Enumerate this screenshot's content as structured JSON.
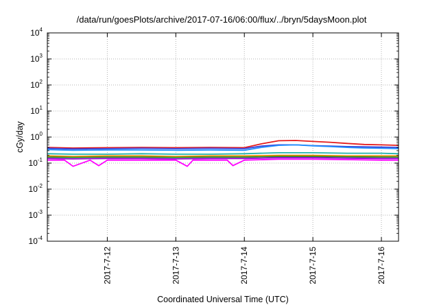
{
  "chart_data": {
    "type": "line",
    "title": "/data/run/goesPlots/archive/2017-07-16/06:00/flux/../bryn/5daysMoon.plot",
    "xlabel": "Coordinated Universal Time (UTC)",
    "ylabel": "cGy/day",
    "yscale": "log",
    "ylim": [
      0.0001,
      10000
    ],
    "xlim": [
      "2017-07-11T03:00",
      "2017-07-16T06:00"
    ],
    "grid": true,
    "legend": "none",
    "y_ticks": [
      {
        "base": "10",
        "exp": "-4",
        "value": 0.0001
      },
      {
        "base": "10",
        "exp": "-3",
        "value": 0.001
      },
      {
        "base": "10",
        "exp": "-2",
        "value": 0.01
      },
      {
        "base": "10",
        "exp": "-1",
        "value": 0.1
      },
      {
        "base": "10",
        "exp": "0",
        "value": 1
      },
      {
        "base": "10",
        "exp": "1",
        "value": 10
      },
      {
        "base": "10",
        "exp": "2",
        "value": 100
      },
      {
        "base": "10",
        "exp": "3",
        "value": 1000
      },
      {
        "base": "10",
        "exp": "4",
        "value": 10000
      }
    ],
    "x_ticks": [
      {
        "label": "2017-7-12",
        "value": "2017-07-12T00:00"
      },
      {
        "label": "2017-7-13",
        "value": "2017-07-13T00:00"
      },
      {
        "label": "2017-7-14",
        "value": "2017-07-14T00:00"
      },
      {
        "label": "2017-7-15",
        "value": "2017-07-15T00:00"
      },
      {
        "label": "2017-7-16",
        "value": "2017-07-16T00:00"
      }
    ],
    "series": [
      {
        "color": "#e41a1c",
        "x": [
          "2017-07-11T03:00",
          "2017-07-11T12:00",
          "2017-07-12T00:00",
          "2017-07-12T12:00",
          "2017-07-13T00:00",
          "2017-07-13T12:00",
          "2017-07-14T00:00",
          "2017-07-14T06:00",
          "2017-07-14T12:00",
          "2017-07-14T18:00",
          "2017-07-15T00:00",
          "2017-07-15T06:00",
          "2017-07-15T12:00",
          "2017-07-15T18:00",
          "2017-07-16T00:00",
          "2017-07-16T06:00"
        ],
        "y": [
          0.4,
          0.38,
          0.39,
          0.4,
          0.39,
          0.4,
          0.39,
          0.55,
          0.72,
          0.74,
          0.68,
          0.63,
          0.57,
          0.52,
          0.5,
          0.48
        ]
      },
      {
        "color": "#3b3fd8",
        "x": [
          "2017-07-11T03:00",
          "2017-07-11T12:00",
          "2017-07-12T00:00",
          "2017-07-12T12:00",
          "2017-07-13T00:00",
          "2017-07-13T12:00",
          "2017-07-14T00:00",
          "2017-07-14T06:00",
          "2017-07-14T12:00",
          "2017-07-14T18:00",
          "2017-07-15T00:00",
          "2017-07-15T06:00",
          "2017-07-15T12:00",
          "2017-07-15T18:00",
          "2017-07-16T00:00",
          "2017-07-16T06:00"
        ],
        "y": [
          0.37,
          0.35,
          0.36,
          0.37,
          0.36,
          0.37,
          0.36,
          0.45,
          0.5,
          0.5,
          0.47,
          0.45,
          0.43,
          0.42,
          0.41,
          0.4
        ]
      },
      {
        "color": "#1e90ff",
        "x": [
          "2017-07-11T03:00",
          "2017-07-11T12:00",
          "2017-07-12T00:00",
          "2017-07-12T12:00",
          "2017-07-13T00:00",
          "2017-07-13T12:00",
          "2017-07-14T00:00",
          "2017-07-14T06:00",
          "2017-07-14T12:00",
          "2017-07-14T18:00",
          "2017-07-15T00:00",
          "2017-07-15T06:00",
          "2017-07-15T12:00",
          "2017-07-15T18:00",
          "2017-07-16T00:00",
          "2017-07-16T06:00"
        ],
        "y": [
          0.33,
          0.31,
          0.32,
          0.32,
          0.31,
          0.32,
          0.31,
          0.4,
          0.48,
          0.5,
          0.46,
          0.43,
          0.4,
          0.38,
          0.37,
          0.36
        ]
      },
      {
        "color": "#20b2aa",
        "x": [
          "2017-07-11T03:00",
          "2017-07-11T12:00",
          "2017-07-12T00:00",
          "2017-07-12T12:00",
          "2017-07-13T00:00",
          "2017-07-13T12:00",
          "2017-07-14T00:00",
          "2017-07-14T12:00",
          "2017-07-15T00:00",
          "2017-07-15T12:00",
          "2017-07-16T00:00",
          "2017-07-16T06:00"
        ],
        "y": [
          0.23,
          0.22,
          0.22,
          0.23,
          0.22,
          0.22,
          0.23,
          0.25,
          0.25,
          0.24,
          0.24,
          0.23
        ]
      },
      {
        "color": "#ff8c00",
        "x": [
          "2017-07-11T03:00",
          "2017-07-11T12:00",
          "2017-07-12T00:00",
          "2017-07-12T12:00",
          "2017-07-13T00:00",
          "2017-07-13T12:00",
          "2017-07-14T00:00",
          "2017-07-14T12:00",
          "2017-07-15T00:00",
          "2017-07-15T12:00",
          "2017-07-16T00:00",
          "2017-07-16T06:00"
        ],
        "y": [
          0.19,
          0.18,
          0.19,
          0.19,
          0.18,
          0.19,
          0.19,
          0.2,
          0.2,
          0.19,
          0.19,
          0.19
        ]
      },
      {
        "color": "#228b22",
        "x": [
          "2017-07-11T03:00",
          "2017-07-11T12:00",
          "2017-07-12T00:00",
          "2017-07-12T12:00",
          "2017-07-13T00:00",
          "2017-07-13T12:00",
          "2017-07-14T00:00",
          "2017-07-14T12:00",
          "2017-07-15T00:00",
          "2017-07-15T12:00",
          "2017-07-16T00:00",
          "2017-07-16T06:00"
        ],
        "y": [
          0.17,
          0.165,
          0.17,
          0.17,
          0.165,
          0.17,
          0.17,
          0.18,
          0.18,
          0.175,
          0.17,
          0.17
        ]
      },
      {
        "color": "#9400d3",
        "x": [
          "2017-07-11T03:00",
          "2017-07-11T12:00",
          "2017-07-12T00:00",
          "2017-07-12T12:00",
          "2017-07-13T00:00",
          "2017-07-13T12:00",
          "2017-07-14T00:00",
          "2017-07-14T12:00",
          "2017-07-15T00:00",
          "2017-07-15T12:00",
          "2017-07-16T00:00",
          "2017-07-16T06:00"
        ],
        "y": [
          0.15,
          0.145,
          0.15,
          0.15,
          0.145,
          0.15,
          0.15,
          0.16,
          0.16,
          0.155,
          0.15,
          0.15
        ]
      },
      {
        "color": "#ff00ff",
        "x": [
          "2017-07-11T03:00",
          "2017-07-11T09:00",
          "2017-07-11T12:00",
          "2017-07-11T18:00",
          "2017-07-11T21:00",
          "2017-07-12T00:00",
          "2017-07-12T12:00",
          "2017-07-13T00:00",
          "2017-07-13T04:00",
          "2017-07-13T06:00",
          "2017-07-13T12:00",
          "2017-07-13T18:00",
          "2017-07-13T20:00",
          "2017-07-14T00:00",
          "2017-07-14T12:00",
          "2017-07-15T00:00",
          "2017-07-15T12:00",
          "2017-07-16T00:00",
          "2017-07-16T06:00"
        ],
        "y": [
          0.13,
          0.13,
          0.075,
          0.13,
          0.08,
          0.13,
          0.13,
          0.13,
          0.075,
          0.13,
          0.13,
          0.13,
          0.08,
          0.13,
          0.14,
          0.14,
          0.135,
          0.13,
          0.13
        ]
      }
    ]
  }
}
